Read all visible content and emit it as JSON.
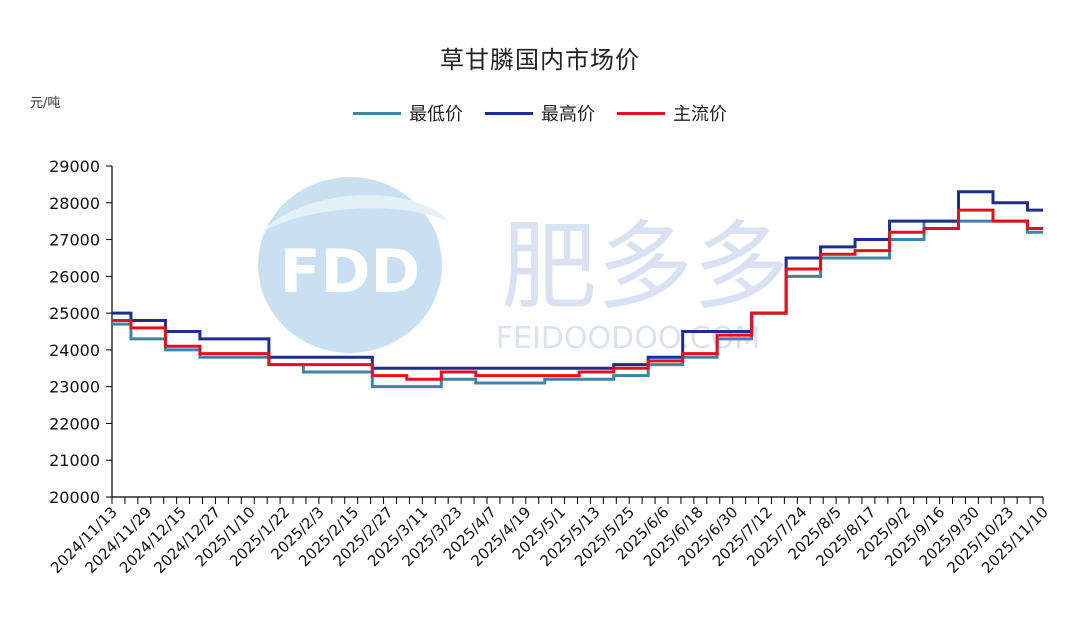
{
  "chart_data": {
    "type": "line",
    "title": "草甘膦国内市场价",
    "ylabel": "元/吨",
    "xlabel": "",
    "ylim": [
      20000,
      29000
    ],
    "yticks": [
      20000,
      21000,
      22000,
      23000,
      24000,
      25000,
      26000,
      27000,
      28000,
      29000
    ],
    "categories": [
      "2024/11/13",
      "2024/11/29",
      "2024/12/15",
      "2024/12/27",
      "2025/1/10",
      "2025/1/22",
      "2025/2/3",
      "2025/2/15",
      "2025/2/27",
      "2025/3/11",
      "2025/3/23",
      "2025/4/7",
      "2025/4/19",
      "2025/5/1",
      "2025/5/13",
      "2025/5/25",
      "2025/6/6",
      "2025/6/18",
      "2025/6/30",
      "2025/7/12",
      "2025/7/24",
      "2025/8/5",
      "2025/8/17",
      "2025/9/2",
      "2025/9/16",
      "2025/9/30",
      "2025/10/23",
      "2025/11/10"
    ],
    "legend_position": "top",
    "grid": false,
    "watermark": {
      "text": "肥多多",
      "sub": "FEIDOODOO.COM",
      "logo": "FDD"
    },
    "series": [
      {
        "name": "最低价",
        "color": "#3f84a8",
        "values": [
          24700,
          24300,
          24000,
          23800,
          23800,
          23600,
          23400,
          23400,
          23000,
          23000,
          23200,
          23100,
          23100,
          23200,
          23200,
          23300,
          23600,
          23800,
          24300,
          25000,
          26000,
          26500,
          26500,
          27000,
          27500,
          27500,
          27500,
          27200
        ]
      },
      {
        "name": "最高价",
        "color": "#1f2e8c",
        "values": [
          25000,
          24800,
          24500,
          24300,
          24300,
          23800,
          23800,
          23800,
          23500,
          23500,
          23500,
          23500,
          23500,
          23500,
          23500,
          23600,
          23800,
          24500,
          24500,
          25000,
          26500,
          26800,
          27000,
          27500,
          27500,
          28300,
          28000,
          27800
        ]
      },
      {
        "name": "主流价",
        "color": "#e4101c",
        "values": [
          24800,
          24600,
          24100,
          23900,
          23900,
          23600,
          23600,
          23600,
          23300,
          23200,
          23400,
          23300,
          23300,
          23300,
          23400,
          23500,
          23700,
          23900,
          24400,
          25000,
          26200,
          26600,
          26700,
          27200,
          27300,
          27800,
          27500,
          27300
        ]
      }
    ]
  }
}
